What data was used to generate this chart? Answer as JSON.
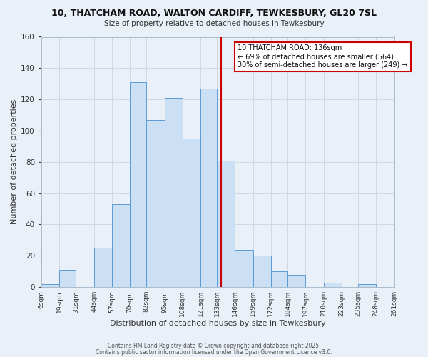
{
  "title": "10, THATCHAM ROAD, WALTON CARDIFF, TEWKESBURY, GL20 7SL",
  "subtitle": "Size of property relative to detached houses in Tewkesbury",
  "xlabel": "Distribution of detached houses by size in Tewkesbury",
  "ylabel": "Number of detached properties",
  "bin_labels": [
    "6sqm",
    "19sqm",
    "31sqm",
    "44sqm",
    "57sqm",
    "70sqm",
    "82sqm",
    "95sqm",
    "108sqm",
    "121sqm",
    "133sqm",
    "146sqm",
    "159sqm",
    "172sqm",
    "184sqm",
    "197sqm",
    "210sqm",
    "223sqm",
    "235sqm",
    "248sqm",
    "261sqm"
  ],
  "bar_values": [
    2,
    11,
    0,
    25,
    53,
    131,
    107,
    121,
    95,
    127,
    81,
    24,
    20,
    10,
    8,
    0,
    3,
    0,
    2,
    0
  ],
  "bar_color": "#cce0f5",
  "bar_edge_color": "#5b9bd5",
  "vline_x": 136,
  "vline_color": "#cc0000",
  "annotation_text": "10 THATCHAM ROAD: 136sqm\n← 69% of detached houses are smaller (564)\n30% of semi-detached houses are larger (249) →",
  "annotation_box_color": "#ffffff",
  "annotation_box_edge": "#cc0000",
  "grid_color": "#d0d8e8",
  "background_color": "#eaf0f8",
  "footer1": "Contains HM Land Registry data © Crown copyright and database right 2025.",
  "footer2": "Contains public sector information licensed under the Open Government Licence v3.0.",
  "ylim": [
    0,
    160
  ],
  "bin_edges": [
    6,
    19,
    31,
    44,
    57,
    70,
    82,
    95,
    108,
    121,
    133,
    146,
    159,
    172,
    184,
    197,
    210,
    223,
    235,
    248,
    261
  ]
}
